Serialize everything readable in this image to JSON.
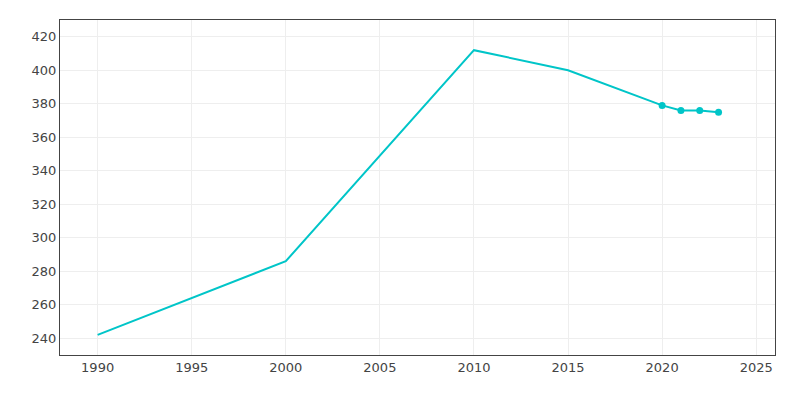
{
  "chart_data": {
    "type": "line",
    "x": [
      1990,
      2000,
      2010,
      2015,
      2020,
      2021,
      2022,
      2023
    ],
    "series": [
      {
        "color": "#00C5C8",
        "values": [
          242,
          286,
          412,
          400,
          379,
          376,
          376,
          375
        ]
      },
      {
        "color": "#00C5C8",
        "values": [
          null,
          null,
          null,
          null,
          379,
          376,
          376,
          375
        ],
        "marker": "circle",
        "line_style": "none"
      }
    ],
    "xlim": [
      1988,
      2026
    ],
    "ylim": [
      230,
      430
    ],
    "xticks": [
      1990,
      1995,
      2000,
      2005,
      2010,
      2015,
      2020,
      2025
    ],
    "yticks": [
      240,
      260,
      280,
      300,
      320,
      340,
      360,
      380,
      400,
      420
    ],
    "grid": true
  }
}
